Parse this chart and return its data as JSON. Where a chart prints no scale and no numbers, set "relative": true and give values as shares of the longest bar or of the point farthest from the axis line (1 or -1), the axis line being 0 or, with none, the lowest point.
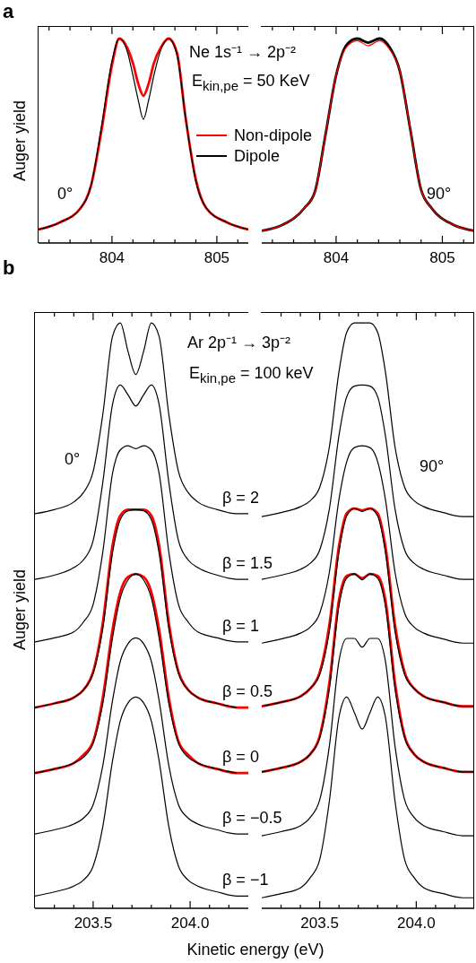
{
  "chart_data": [
    {
      "type": "line",
      "annotations": [
        "a",
        "Ne 1s⁻¹ → 2p⁻²",
        "E$_{kin,pe}$ = 50 KeV",
        "0°"
      ],
      "ylabel": "Auger yield",
      "relative": true,
      "legend": "right",
      "marker": "none",
      "x": [
        803.3,
        803.5,
        803.7,
        803.8,
        803.9,
        804.0,
        804.07,
        804.15,
        804.2,
        804.25,
        804.3,
        804.35,
        804.4,
        804.47,
        804.54,
        804.62,
        804.7,
        804.8,
        804.9,
        805.1,
        805.3
      ],
      "xlim": [
        803.3,
        805.3
      ],
      "xticks": [
        {
          "value": 803.4,
          "label": null
        },
        {
          "value": 803.6,
          "label": null
        },
        {
          "value": 803.8,
          "label": null
        },
        804,
        {
          "value": 804.2,
          "label": null
        },
        {
          "value": 804.4,
          "label": null
        },
        {
          "value": 804.6,
          "label": null
        },
        {
          "value": 804.8,
          "label": null
        },
        805,
        {
          "value": 805.2,
          "label": null
        }
      ],
      "series": [
        {
          "name": "Non-dipole",
          "color": "#ff0000",
          "values": [
            0.066,
            0.1,
            0.17,
            0.28,
            0.55,
            0.87,
            1.0,
            0.95,
            0.88,
            0.78,
            0.72,
            0.78,
            0.88,
            0.96,
            1.0,
            0.93,
            0.62,
            0.31,
            0.17,
            0.1,
            0.066
          ]
        },
        {
          "name": "Dipole",
          "color": "#000000",
          "values": [
            0.066,
            0.1,
            0.17,
            0.28,
            0.57,
            0.89,
            1.0,
            0.93,
            0.82,
            0.7,
            0.605,
            0.7,
            0.82,
            0.95,
            1.0,
            0.92,
            0.62,
            0.3,
            0.17,
            0.1,
            0.066
          ]
        }
      ]
    },
    {
      "type": "line",
      "annotations": [
        "90°"
      ],
      "relative": true,
      "marker": "none",
      "x": [
        803.3,
        803.5,
        803.7,
        803.8,
        803.9,
        804.0,
        804.1,
        804.2,
        804.3,
        804.41,
        804.5,
        804.6,
        804.7,
        804.8,
        804.9,
        805.1,
        805.3
      ],
      "xlim": [
        803.3,
        805.3
      ],
      "xticks": [
        {
          "value": 803.4,
          "label": null
        },
        {
          "value": 803.6,
          "label": null
        },
        {
          "value": 803.8,
          "label": null
        },
        804,
        {
          "value": 804.2,
          "label": null
        },
        {
          "value": 804.4,
          "label": null
        },
        {
          "value": 804.6,
          "label": null
        },
        {
          "value": 804.8,
          "label": null
        },
        805,
        {
          "value": 805.2,
          "label": null
        }
      ],
      "series": [
        {
          "color": "#000000",
          "values": [
            0.06,
            0.09,
            0.17,
            0.25,
            0.53,
            0.82,
            0.97,
            1.0,
            0.98,
            1.0,
            0.96,
            0.84,
            0.55,
            0.26,
            0.17,
            0.09,
            0.06
          ]
        },
        {
          "color": "#ff0000",
          "values": [
            0.06,
            0.09,
            0.17,
            0.25,
            0.53,
            0.82,
            0.96,
            0.99,
            0.965,
            0.99,
            0.95,
            0.84,
            0.55,
            0.26,
            0.17,
            0.09,
            0.06
          ]
        }
      ]
    },
    {
      "type": "line",
      "annotations": [
        "b",
        "Ar 2p⁻¹ → 3p⁻²",
        "E$_{kin,pe}$ = 100 keV",
        "0°"
      ],
      "ylabel": "Auger yield",
      "xlabel": "Kinetic energy (eV)",
      "relative": true,
      "marker": "none",
      "x": [
        203.2,
        203.3,
        203.4,
        203.45,
        203.5,
        203.55,
        203.6,
        203.64,
        203.68,
        203.72,
        203.76,
        203.8,
        203.84,
        203.89,
        203.94,
        203.99,
        204.04,
        204.14,
        204.24,
        204.3
      ],
      "xlim": [
        203.2,
        204.3
      ],
      "xticks": [
        {
          "value": 203.3,
          "label": null
        },
        {
          "value": 203.4,
          "label": null
        },
        203.5,
        {
          "value": 203.6,
          "label": null
        },
        {
          "value": 203.7,
          "label": null
        },
        {
          "value": 203.8,
          "label": null
        },
        {
          "value": 203.9,
          "label": null
        },
        {
          "value": 204,
          "label": "204.0"
        },
        {
          "value": 204.1,
          "label": null
        },
        {
          "value": 204.2,
          "label": null
        }
      ],
      "series": [
        {
          "name": "β = 2",
          "color": "#000000",
          "values": [
            0.674,
            0.681,
            0.694,
            0.71,
            0.746,
            0.844,
            0.977,
            1.0,
            0.951,
            0.912,
            0.951,
            1.0,
            0.977,
            0.844,
            0.746,
            0.71,
            0.694,
            0.681,
            0.674,
            0.674
          ]
        },
        {
          "name": "β = 1.5",
          "color": "#000000",
          "values": [
            0.562,
            0.569,
            0.582,
            0.595,
            0.628,
            0.728,
            0.861,
            0.894,
            0.877,
            0.858,
            0.877,
            0.894,
            0.861,
            0.728,
            0.628,
            0.595,
            0.582,
            0.569,
            0.562,
            0.562
          ]
        },
        {
          "name": "β = 1",
          "color": "#000000",
          "values": [
            0.455,
            0.462,
            0.472,
            0.489,
            0.519,
            0.609,
            0.743,
            0.783,
            0.79,
            0.785,
            0.79,
            0.783,
            0.743,
            0.609,
            0.519,
            0.489,
            0.472,
            0.462,
            0.455,
            0.455
          ]
        },
        {
          "name": "β = 0.5",
          "color": "#000000",
          "values": [
            0.343,
            0.35,
            0.36,
            0.373,
            0.401,
            0.478,
            0.607,
            0.664,
            0.679,
            0.681,
            0.679,
            0.664,
            0.607,
            0.478,
            0.401,
            0.373,
            0.36,
            0.35,
            0.343,
            null
          ]
        },
        {
          "name": "β = 0",
          "color": "#000000",
          "values": [
            0.231,
            0.238,
            0.248,
            0.258,
            0.282,
            0.35,
            0.462,
            0.53,
            0.561,
            0.571,
            0.561,
            0.53,
            0.462,
            0.35,
            0.282,
            0.258,
            0.248,
            0.238,
            0.231,
            null
          ]
        },
        {
          "name": "β = −0.5",
          "color": "#000000",
          "values": [
            0.127,
            0.134,
            0.144,
            0.154,
            0.177,
            0.244,
            0.355,
            0.422,
            0.452,
            0.462,
            0.452,
            0.422,
            0.355,
            0.244,
            0.177,
            0.154,
            0.144,
            0.134,
            0.127,
            0.127
          ]
        },
        {
          "name": "β = −1",
          "color": "#000000",
          "values": [
            0.021,
            0.028,
            0.038,
            0.048,
            0.072,
            0.14,
            0.252,
            0.32,
            0.351,
            0.361,
            0.351,
            0.32,
            0.252,
            0.14,
            0.072,
            0.048,
            0.038,
            0.028,
            0.021,
            0.021
          ]
        },
        {
          "color": "#ff0000",
          "values": [
            0.343,
            0.35,
            0.36,
            0.373,
            0.404,
            0.488,
            0.62,
            0.671,
            0.681,
            0.681,
            0.681,
            0.671,
            0.62,
            0.488,
            0.404,
            0.373,
            0.36,
            0.35,
            0.343,
            0.343
          ]
        },
        {
          "color": "#ff0000",
          "values": [
            0.231,
            0.238,
            0.248,
            0.262,
            0.285,
            0.36,
            0.476,
            0.54,
            0.566,
            0.571,
            0.566,
            0.54,
            0.476,
            0.36,
            0.285,
            0.262,
            0.248,
            0.238,
            0.231,
            0.231
          ]
        }
      ]
    },
    {
      "type": "line",
      "annotations": [
        "90°"
      ],
      "relative": true,
      "marker": "none",
      "x": [
        203.2,
        203.3,
        203.4,
        203.45,
        203.5,
        203.55,
        203.6,
        203.64,
        203.68,
        203.72,
        203.76,
        203.8,
        203.84,
        203.89,
        203.94,
        203.99,
        204.04,
        204.14,
        204.24,
        204.3
      ],
      "xlim": [
        203.2,
        204.3
      ],
      "xticks": [
        {
          "value": 203.3,
          "label": null
        },
        {
          "value": 203.4,
          "label": null
        },
        203.5,
        {
          "value": 203.6,
          "label": null
        },
        {
          "value": 203.7,
          "label": null
        },
        {
          "value": 203.8,
          "label": null
        },
        {
          "value": 203.9,
          "label": null
        },
        {
          "value": 204,
          "label": "204.0"
        },
        {
          "value": 204.1,
          "label": null
        },
        {
          "value": 204.2,
          "label": null
        }
      ],
      "series": [
        {
          "color": "#000000",
          "values": [
            0.669,
            0.676,
            0.686,
            0.696,
            0.719,
            0.788,
            0.917,
            0.984,
            1.0,
            1.0,
            1.0,
            0.984,
            0.917,
            0.788,
            0.719,
            0.696,
            0.686,
            0.676,
            0.669,
            0.669
          ]
        },
        {
          "color": "#000000",
          "values": [
            0.562,
            0.569,
            0.579,
            0.589,
            0.612,
            0.682,
            0.808,
            0.874,
            0.892,
            0.894,
            0.892,
            0.874,
            0.808,
            0.682,
            0.612,
            0.589,
            0.579,
            0.569,
            0.562,
            0.562
          ]
        },
        {
          "color": "#000000",
          "values": [
            0.453,
            0.46,
            0.47,
            0.48,
            0.504,
            0.574,
            0.699,
            0.763,
            0.787,
            0.79,
            0.787,
            0.763,
            0.699,
            0.574,
            0.504,
            0.48,
            0.47,
            0.46,
            0.453,
            0.453
          ]
        },
        {
          "color": "#000000",
          "values": [
            0.345,
            0.352,
            0.362,
            0.375,
            0.399,
            0.473,
            0.609,
            0.67,
            0.683,
            0.678,
            0.683,
            0.67,
            0.609,
            0.473,
            0.399,
            0.375,
            0.362,
            0.352,
            0.345,
            0.345
          ]
        },
        {
          "color": "#000000",
          "values": [
            0.233,
            0.24,
            0.25,
            0.263,
            0.291,
            0.375,
            0.517,
            0.564,
            0.571,
            0.561,
            0.571,
            0.564,
            0.517,
            0.375,
            0.291,
            0.263,
            0.25,
            0.24,
            0.233,
            0.233
          ]
        },
        {
          "color": "#000000",
          "values": [
            0.124,
            0.131,
            0.141,
            0.155,
            0.185,
            0.277,
            0.423,
            0.461,
            0.461,
            0.446,
            0.461,
            0.461,
            0.423,
            0.277,
            0.185,
            0.155,
            0.141,
            0.131,
            0.124,
            0.124
          ]
        },
        {
          "color": "#000000",
          "values": [
            0.018,
            0.025,
            0.035,
            0.052,
            0.083,
            0.183,
            0.327,
            0.361,
            0.334,
            0.306,
            0.334,
            0.361,
            0.327,
            0.183,
            0.083,
            0.052,
            0.035,
            0.025,
            0.018,
            0.018
          ]
        },
        {
          "color": "#ff0000",
          "values": [
            0.345,
            0.352,
            0.362,
            0.375,
            0.403,
            0.484,
            0.619,
            0.675,
            0.683,
            0.68,
            0.683,
            0.675,
            0.619,
            0.484,
            0.403,
            0.375,
            0.362,
            0.352,
            0.345,
            0.345
          ]
        },
        {
          "color": "#ff0000",
          "values": [
            0.233,
            0.24,
            0.25,
            0.263,
            0.294,
            0.385,
            0.527,
            0.568,
            0.571,
            0.564,
            0.571,
            0.568,
            0.527,
            0.385,
            0.294,
            0.263,
            0.25,
            0.24,
            0.233,
            0.233
          ]
        }
      ]
    }
  ]
}
